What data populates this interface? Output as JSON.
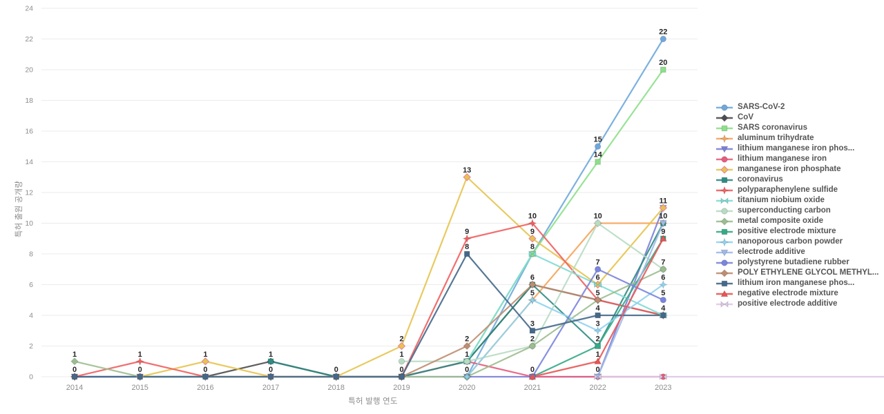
{
  "chart_data": {
    "type": "line",
    "title": "",
    "xlabel": "특허 발행 연도",
    "ylabel": "특허 출원 공개량",
    "categories": [
      "2014",
      "2015",
      "2016",
      "2017",
      "2018",
      "2019",
      "2020",
      "2021",
      "2022",
      "2023"
    ],
    "ylim": [
      0,
      24
    ],
    "ytick_step": 2,
    "yticks": [
      "0",
      "2",
      "4",
      "6",
      "8",
      "10",
      "12",
      "14",
      "16",
      "18",
      "20",
      "22",
      "24"
    ],
    "grid": true,
    "legend_position": "right",
    "series": [
      {
        "name": "SARS-CoV-2",
        "color": "#6fa8dc",
        "marker": "circle",
        "values": [
          null,
          null,
          null,
          null,
          null,
          null,
          0,
          8,
          15,
          22
        ]
      },
      {
        "name": "CoV",
        "color": "#4d4d4d",
        "marker": "diamond",
        "values": [
          0,
          0,
          0,
          1,
          0,
          0,
          1,
          6,
          5,
          4
        ]
      },
      {
        "name": "SARS coronavirus",
        "color": "#8ce08a",
        "marker": "square",
        "values": [
          null,
          null,
          null,
          null,
          null,
          null,
          1,
          8,
          14,
          20
        ]
      },
      {
        "name": "aluminum trihydrate",
        "color": "#f5a45c",
        "marker": "star",
        "values": [
          null,
          null,
          null,
          null,
          null,
          null,
          0,
          5,
          10,
          10
        ]
      },
      {
        "name": "lithium manganese iron phos...",
        "color": "#7b80d6",
        "marker": "tridown",
        "values": [
          0,
          0,
          0,
          0,
          0,
          0,
          0,
          0,
          0,
          11
        ]
      },
      {
        "name": "lithium manganese iron",
        "color": "#e65d7d",
        "marker": "circle",
        "values": [
          null,
          null,
          null,
          null,
          null,
          0,
          1,
          0,
          0,
          0
        ]
      },
      {
        "name": "manganese iron phosphate",
        "color": "#e6c44e",
        "marker": "diamond",
        "marker_stroke": "#e8829e",
        "values": [
          null,
          0,
          1,
          0,
          0,
          2,
          13,
          9,
          6,
          11
        ]
      },
      {
        "name": "coronavirus",
        "color": "#2e8b82",
        "marker": "square",
        "values": [
          null,
          null,
          null,
          1,
          0,
          0,
          1,
          6,
          2,
          10
        ]
      },
      {
        "name": "polyparaphenylene sulfide",
        "color": "#f15f5f",
        "marker": "star",
        "values": [
          0,
          1,
          0,
          0,
          0,
          0,
          9,
          10,
          5,
          4
        ]
      },
      {
        "name": "titanium niobium oxide",
        "color": "#7fdbd4",
        "marker": "bowtie",
        "values": [
          null,
          null,
          null,
          null,
          null,
          null,
          1,
          8,
          6,
          4
        ]
      },
      {
        "name": "superconducting carbon",
        "color": "#b8dcc3",
        "marker": "circle",
        "values": [
          null,
          null,
          null,
          null,
          null,
          1,
          1,
          2,
          10,
          7
        ]
      },
      {
        "name": "metal composite oxide",
        "color": "#9cbe8f",
        "marker": "diamond",
        "values": [
          1,
          0,
          0,
          0,
          0,
          0,
          0,
          2,
          5,
          7
        ]
      },
      {
        "name": "positive electrode mixture",
        "color": "#36a987",
        "marker": "square",
        "values": [
          null,
          null,
          null,
          null,
          null,
          null,
          null,
          0,
          2,
          9
        ]
      },
      {
        "name": "nanoporous carbon powder",
        "color": "#8fd2ef",
        "marker": "star",
        "values": [
          null,
          null,
          null,
          null,
          null,
          null,
          0,
          5,
          3,
          6
        ]
      },
      {
        "name": "electrode additive",
        "color": "#9fb9e8",
        "marker": "tridown",
        "values": [
          null,
          null,
          null,
          null,
          null,
          null,
          null,
          null,
          0,
          10
        ]
      },
      {
        "name": "polystyrene butadiene rubber",
        "color": "#7a85dd",
        "marker": "circle",
        "values": [
          null,
          null,
          null,
          null,
          null,
          null,
          null,
          0,
          7,
          5
        ]
      },
      {
        "name": "POLY ETHYLENE GLYCOL METHYL...",
        "color": "#bf8d70",
        "marker": "diamond",
        "values": [
          null,
          null,
          null,
          null,
          null,
          0,
          2,
          6,
          5,
          null
        ]
      },
      {
        "name": "lithium iron manganese phos...",
        "color": "#44688a",
        "marker": "square",
        "values": [
          0,
          0,
          0,
          0,
          0,
          0,
          8,
          3,
          4,
          4
        ]
      },
      {
        "name": "negative electrode mixture",
        "color": "#e85555",
        "marker": "triup",
        "values": [
          null,
          null,
          null,
          null,
          null,
          null,
          null,
          0,
          1,
          9
        ]
      },
      {
        "name": "positive electrode additive",
        "color": "#ddc9e8",
        "marker": "bowtie",
        "extend_right": true,
        "values": [
          null,
          null,
          null,
          null,
          null,
          null,
          null,
          null,
          0,
          0
        ]
      }
    ]
  },
  "layout_colors": {
    "grid": "#ebebeb",
    "tick_label": "#8c8c8c",
    "value_label": "#262626",
    "legend_text": "#555555"
  }
}
